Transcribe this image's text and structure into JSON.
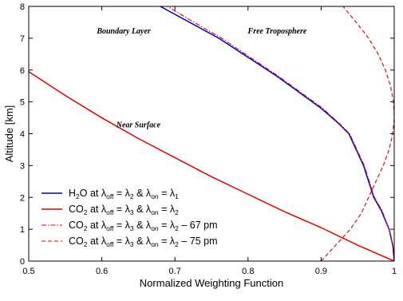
{
  "chart_data": {
    "type": "line",
    "xlabel": "Normalized Weighting Function",
    "ylabel": "Altitude [km]",
    "xlim": [
      0.5,
      1.0
    ],
    "ylim": [
      0,
      8
    ],
    "xticks": [
      "0.5",
      "0.6",
      "0.7",
      "0.8",
      "0.9",
      "1"
    ],
    "yticks": [
      "0",
      "1",
      "2",
      "3",
      "4",
      "5",
      "6",
      "7",
      "8"
    ],
    "grid": false,
    "legend_position": "bottom-left",
    "annotations": [
      {
        "text": "Boundary Layer",
        "x": 0.63,
        "y": 7.15
      },
      {
        "text": "Free Troposphere",
        "x": 0.84,
        "y": 7.15
      },
      {
        "text": "Near Surface",
        "x": 0.65,
        "y": 4.2
      }
    ],
    "series": [
      {
        "name": "H2O at λoff = λ2 & λon = λ1",
        "legend": {
          "main": "H",
          "sub1": "2",
          "mid1": "O at λ",
          "sub2": "off",
          "mid2": " = λ",
          "sub3": "2",
          "mid3": " & λ",
          "sub4": "on",
          "mid4": " = λ",
          "sub5": "1",
          "tail": ""
        },
        "color": "#0000cc",
        "style": "solid",
        "x": [
          1.0,
          0.998,
          0.993,
          0.982,
          0.972,
          0.965,
          0.958,
          0.948,
          0.938,
          0.925,
          0.9,
          0.87,
          0.84,
          0.8,
          0.76,
          0.72,
          0.68
        ],
        "y": [
          0,
          0.5,
          1.0,
          1.6,
          2.0,
          2.5,
          3.0,
          3.5,
          4.0,
          4.3,
          4.8,
          5.3,
          5.8,
          6.4,
          7.0,
          7.5,
          8.0
        ]
      },
      {
        "name": "CO2 at λoff = λ3 & λon = λ2",
        "legend": {
          "main": "CO",
          "sub1": "2",
          "mid1": " at λ",
          "sub2": "off",
          "mid2": " = λ",
          "sub3": "3",
          "mid3": " & λ",
          "sub4": "on",
          "mid4": " = λ",
          "sub5": "2",
          "tail": ""
        },
        "color": "#dd0000",
        "style": "solid",
        "x": [
          0.5,
          0.55,
          0.6,
          0.65,
          0.7,
          0.75,
          0.8,
          0.85,
          0.9,
          0.95,
          1.0
        ],
        "y": [
          5.95,
          5.2,
          4.5,
          3.85,
          3.25,
          2.65,
          2.1,
          1.55,
          1.05,
          0.5,
          0.0
        ]
      },
      {
        "name": "CO2 at λoff = λ3 & λon = λ2 – 67 pm",
        "legend": {
          "main": "CO",
          "sub1": "2",
          "mid1": " at λ",
          "sub2": "off",
          "mid2": " = λ",
          "sub3": "3",
          "mid3": " & λ",
          "sub4": "on",
          "mid4": " = λ",
          "sub5": "2",
          "tail": " – 67 pm"
        },
        "color": "#dd0000",
        "style": "dashdot",
        "x": [
          1.0,
          0.998,
          0.993,
          0.983,
          0.973,
          0.966,
          0.959,
          0.949,
          0.939,
          0.926,
          0.902,
          0.872,
          0.842,
          0.803,
          0.764,
          0.726,
          0.69
        ],
        "y": [
          0,
          0.5,
          1.0,
          1.6,
          2.0,
          2.5,
          3.0,
          3.5,
          4.0,
          4.3,
          4.8,
          5.3,
          5.8,
          6.4,
          7.0,
          7.5,
          8.0
        ]
      },
      {
        "name": "CO2 at λoff = λ3 & λon = λ2 – 75 pm",
        "legend": {
          "main": "CO",
          "sub1": "2",
          "mid1": " at λ",
          "sub2": "off",
          "mid2": " = λ",
          "sub3": "3",
          "mid3": " & λ",
          "sub4": "on",
          "mid4": " = λ",
          "sub5": "2",
          "tail": " – 75 pm"
        },
        "color": "#dd0000",
        "style": "dashed",
        "x": [
          0.9,
          0.92,
          0.94,
          0.955,
          0.965,
          0.975,
          0.985,
          0.993,
          0.998,
          1.0,
          0.999,
          0.995,
          0.988,
          0.978,
          0.965,
          0.948,
          0.93
        ],
        "y": [
          0.0,
          0.5,
          1.0,
          1.5,
          2.0,
          2.5,
          3.0,
          3.5,
          4.0,
          4.5,
          5.0,
          5.5,
          6.0,
          6.5,
          7.0,
          7.5,
          8.0
        ]
      }
    ]
  }
}
